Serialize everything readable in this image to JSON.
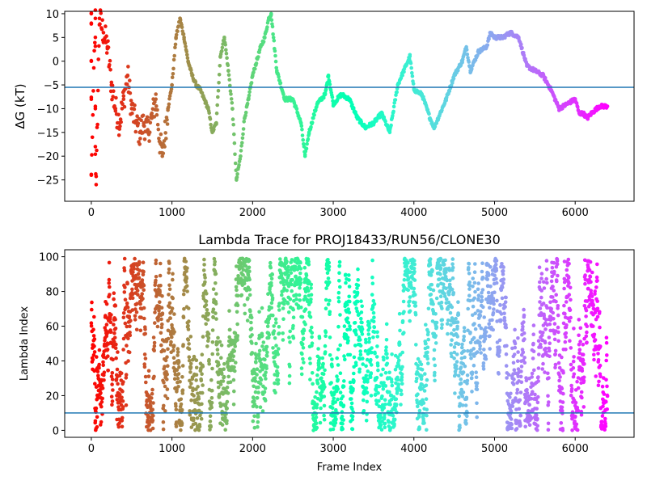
{
  "chart_data": [
    {
      "type": "scatter",
      "title": "",
      "xlabel": "",
      "ylabel": "ΔG (kT)",
      "xlim": [
        -330,
        6730
      ],
      "ylim": [
        -29.5,
        10.5
      ],
      "xticks": [
        0,
        1000,
        2000,
        3000,
        4000,
        5000,
        6000
      ],
      "yticks": [
        -25,
        -20,
        -15,
        -10,
        -5,
        0,
        5,
        10
      ],
      "colormap": "rainbow",
      "color_scale": "frame index (red at 0 to violet at 6400)",
      "hline": {
        "y": -5.5,
        "color": "#1f77b4"
      },
      "key_points": [
        [
          0,
          10
        ],
        [
          0,
          8
        ],
        [
          0,
          0
        ],
        [
          0,
          -8
        ],
        [
          0,
          -24
        ],
        [
          50,
          9
        ],
        [
          50,
          5
        ],
        [
          50,
          -10
        ],
        [
          50,
          -18
        ],
        [
          60,
          -26
        ],
        [
          100,
          9
        ],
        [
          150,
          6
        ],
        [
          200,
          3
        ],
        [
          250,
          -5
        ],
        [
          300,
          -10
        ],
        [
          350,
          -13
        ],
        [
          400,
          -8
        ],
        [
          450,
          -3
        ],
        [
          500,
          -10
        ],
        [
          550,
          -13
        ],
        [
          600,
          -15
        ],
        [
          650,
          -13
        ],
        [
          700,
          -15
        ],
        [
          750,
          -12
        ],
        [
          800,
          -8
        ],
        [
          850,
          -17
        ],
        [
          880,
          -20
        ],
        [
          950,
          -10
        ],
        [
          1000,
          -5
        ],
        [
          1050,
          5
        ],
        [
          1100,
          9
        ],
        [
          1150,
          5
        ],
        [
          1200,
          0
        ],
        [
          1250,
          -3
        ],
        [
          1300,
          -5
        ],
        [
          1350,
          -6
        ],
        [
          1400,
          -8
        ],
        [
          1450,
          -10
        ],
        [
          1500,
          -15
        ],
        [
          1550,
          -13
        ],
        [
          1600,
          1
        ],
        [
          1650,
          5
        ],
        [
          1700,
          -2
        ],
        [
          1750,
          -10
        ],
        [
          1800,
          -25
        ],
        [
          1850,
          -20
        ],
        [
          1900,
          -12
        ],
        [
          1950,
          -8
        ],
        [
          2000,
          -3
        ],
        [
          2100,
          3
        ],
        [
          2150,
          5
        ],
        [
          2200,
          9
        ],
        [
          2230,
          10
        ],
        [
          2300,
          -2
        ],
        [
          2400,
          -8
        ],
        [
          2500,
          -8
        ],
        [
          2600,
          -13
        ],
        [
          2650,
          -20
        ],
        [
          2700,
          -15
        ],
        [
          2800,
          -9
        ],
        [
          2900,
          -7
        ],
        [
          2940,
          -3
        ],
        [
          3000,
          -9
        ],
        [
          3100,
          -7
        ],
        [
          3200,
          -8
        ],
        [
          3300,
          -12
        ],
        [
          3400,
          -14
        ],
        [
          3500,
          -13
        ],
        [
          3600,
          -11
        ],
        [
          3700,
          -15
        ],
        [
          3800,
          -5
        ],
        [
          3900,
          -1
        ],
        [
          3950,
          1
        ],
        [
          4000,
          -6
        ],
        [
          4100,
          -7
        ],
        [
          4200,
          -12
        ],
        [
          4250,
          -14
        ],
        [
          4300,
          -12
        ],
        [
          4400,
          -8
        ],
        [
          4500,
          -3
        ],
        [
          4600,
          0
        ],
        [
          4650,
          3
        ],
        [
          4700,
          -2
        ],
        [
          4800,
          2
        ],
        [
          4900,
          3
        ],
        [
          4950,
          6
        ],
        [
          5000,
          5
        ],
        [
          5100,
          5
        ],
        [
          5200,
          6
        ],
        [
          5300,
          5
        ],
        [
          5400,
          -1
        ],
        [
          5500,
          -2
        ],
        [
          5600,
          -3
        ],
        [
          5700,
          -6
        ],
        [
          5800,
          -10
        ],
        [
          5900,
          -9
        ],
        [
          6000,
          -8
        ],
        [
          6050,
          -11
        ],
        [
          6100,
          -11
        ],
        [
          6150,
          -12
        ],
        [
          6200,
          -11
        ],
        [
          6300,
          -9.5
        ],
        [
          6400,
          -9.5
        ]
      ]
    },
    {
      "type": "scatter",
      "title": "Lambda Trace for PROJ18433/RUN56/CLONE30",
      "xlabel": "Frame Index",
      "ylabel": "Lambda Index",
      "xlim": [
        -330,
        6730
      ],
      "ylim": [
        -4,
        104
      ],
      "xticks": [
        0,
        1000,
        2000,
        3000,
        4000,
        5000,
        6000
      ],
      "yticks": [
        0,
        20,
        40,
        60,
        80,
        100
      ],
      "colormap": "rainbow",
      "color_scale": "frame index (red at 0 to violet at 6400)",
      "hline": {
        "y": 10,
        "color": "#1f77b4"
      },
      "x_range": [
        0,
        6400
      ],
      "y_range": [
        0,
        99
      ]
    }
  ]
}
